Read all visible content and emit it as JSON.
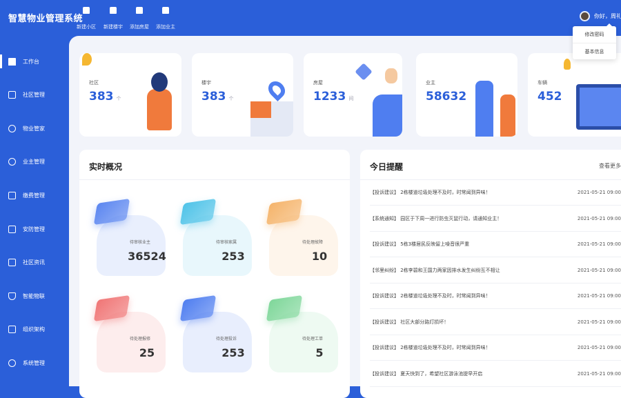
{
  "header": {
    "title": "智慧物业管理系统",
    "quick_actions": [
      {
        "label": "新建小区",
        "icon": "home-icon"
      },
      {
        "label": "新建楼宇",
        "icon": "building-icon"
      },
      {
        "label": "添加房屋",
        "icon": "house-add-icon"
      },
      {
        "label": "添加业主",
        "icon": "user-add-icon"
      }
    ],
    "greeting": "你好，周礼娜",
    "user_menu": [
      "修改密码",
      "基本信息"
    ]
  },
  "sidebar": {
    "items": [
      {
        "label": "工作台",
        "active": true
      },
      {
        "label": "社区管理"
      },
      {
        "label": "物业管家"
      },
      {
        "label": "业主管理"
      },
      {
        "label": "缴费管理"
      },
      {
        "label": "安防管理"
      },
      {
        "label": "社区资讯"
      },
      {
        "label": "智能物联"
      },
      {
        "label": "组织架构"
      },
      {
        "label": "系统管理"
      }
    ]
  },
  "stats": [
    {
      "label": "社区",
      "value": "383",
      "unit": "个"
    },
    {
      "label": "楼宇",
      "value": "383",
      "unit": "个"
    },
    {
      "label": "房屋",
      "value": "1233",
      "unit": "间"
    },
    {
      "label": "业主",
      "value": "58632",
      "unit": ""
    },
    {
      "label": "车辆",
      "value": "452",
      "unit": ""
    }
  ],
  "overview": {
    "title": "实时概况",
    "tiles": [
      {
        "label": "待审核业主",
        "value": "36524",
        "color": "#5b86f0"
      },
      {
        "label": "待审核家属",
        "value": "253",
        "color": "#4fc3e8"
      },
      {
        "label": "待处理故障",
        "value": "10",
        "color": "#f5b46b"
      },
      {
        "label": "待处理报修",
        "value": "25",
        "color": "#f07676"
      },
      {
        "label": "待处理投诉",
        "value": "253",
        "color": "#4f7ef0"
      },
      {
        "label": "待处理工单",
        "value": "5",
        "color": "#7fd79a"
      }
    ]
  },
  "reminders": {
    "title": "今日提醒",
    "more": "查看更多",
    "items": [
      {
        "text": "【投诉建议】 2栋楼道垃圾处理不及时，时常闻到异味！",
        "time": "2021-05-21 09:00"
      },
      {
        "text": "【系统通知】 园区于下周一进行防虫灭鼠行动，请通知业主！",
        "time": "2021-05-21 09:00"
      },
      {
        "text": "【投诉建议】 5栋3楼居民反映留上噪音很严重",
        "time": "2021-05-21 09:00"
      },
      {
        "text": "【邻里纠纷】 2栋李碧和王国力两家因排水发生纠纷互不相让",
        "time": "2021-05-21 09:00"
      },
      {
        "text": "【投诉建议】 2栋楼道垃圾处理不及时，时常闻到异味！",
        "time": "2021-05-21 09:00"
      },
      {
        "text": "【投诉建议】 社区大部分路灯损坏！",
        "time": "2021-05-21 09:00"
      },
      {
        "text": "【投诉建议】 2栋楼道垃圾处理不及时，时常闻到异味！",
        "time": "2021-05-21 09:00"
      },
      {
        "text": "【投诉建议】 夏天快到了，希望社区游泳池提早开启",
        "time": "2021-05-21 09:00"
      }
    ]
  },
  "colors": {
    "brand": "#2b5fd9",
    "background": "#f2f4fa"
  }
}
